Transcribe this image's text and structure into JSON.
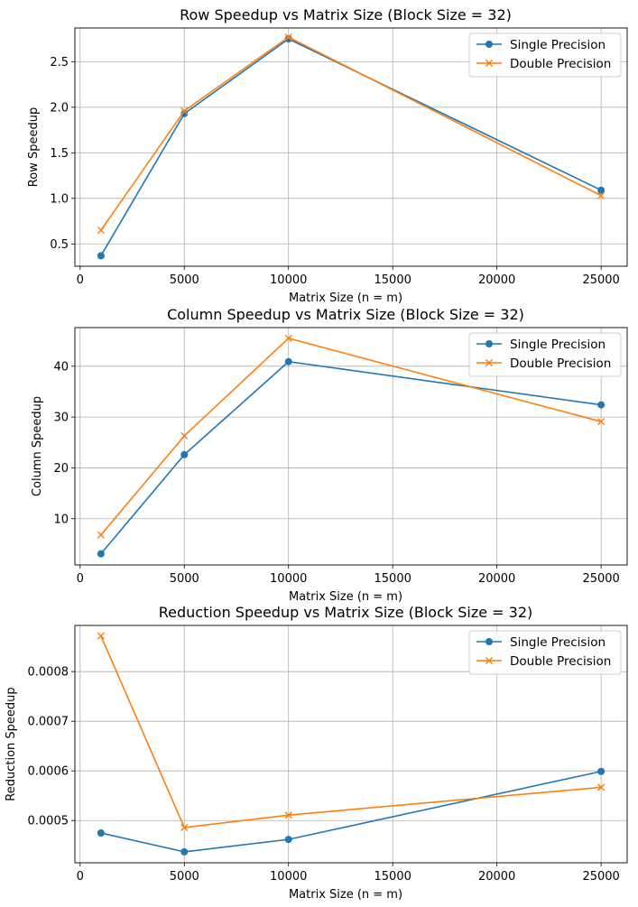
{
  "chart_data": [
    {
      "type": "line",
      "title": "Row Speedup vs Matrix Size (Block Size = 32)",
      "xlabel": "Matrix Size (n = m)",
      "ylabel": "Row Speedup",
      "xlim": [
        -250,
        26250
      ],
      "ylim": [
        0.255,
        2.87
      ],
      "xticks": [
        0,
        5000,
        10000,
        15000,
        20000,
        25000
      ],
      "yticks": [
        0.5,
        1.0,
        1.5,
        2.0,
        2.5
      ],
      "ytick_labels": [
        "0.5",
        "1.0",
        "1.5",
        "2.0",
        "2.5"
      ],
      "grid": true,
      "legend_position": "upper right",
      "x": [
        1000,
        5000,
        10000,
        25000
      ],
      "series": [
        {
          "name": "Single Precision",
          "color": "#1f77b4",
          "marker": "circle",
          "values": [
            0.37,
            1.93,
            2.75,
            1.09
          ]
        },
        {
          "name": "Double Precision",
          "color": "#ff7f0e",
          "marker": "x",
          "values": [
            0.65,
            1.96,
            2.77,
            1.03
          ]
        }
      ]
    },
    {
      "type": "line",
      "title": "Column Speedup vs Matrix Size (Block Size = 32)",
      "xlabel": "Matrix Size (n = m)",
      "ylabel": "Column Speedup",
      "xlim": [
        -250,
        26250
      ],
      "ylim": [
        0.9,
        47.6
      ],
      "xticks": [
        0,
        5000,
        10000,
        15000,
        20000,
        25000
      ],
      "yticks": [
        10,
        20,
        30,
        40
      ],
      "ytick_labels": [
        "10",
        "20",
        "30",
        "40"
      ],
      "grid": true,
      "legend_position": "upper right",
      "x": [
        1000,
        5000,
        10000,
        25000
      ],
      "series": [
        {
          "name": "Single Precision",
          "color": "#1f77b4",
          "marker": "circle",
          "values": [
            3.1,
            22.6,
            40.9,
            32.4
          ]
        },
        {
          "name": "Double Precision",
          "color": "#ff7f0e",
          "marker": "x",
          "values": [
            6.8,
            26.3,
            45.5,
            29.1
          ]
        }
      ]
    },
    {
      "type": "line",
      "title": "Reduction Speedup vs Matrix Size (Block Size = 32)",
      "xlabel": "Matrix Size (n = m)",
      "ylabel": "Reduction Speedup",
      "xlim": [
        -250,
        26250
      ],
      "ylim": [
        0.000415,
        0.000893
      ],
      "xticks": [
        0,
        5000,
        10000,
        15000,
        20000,
        25000
      ],
      "yticks": [
        0.0005,
        0.0006,
        0.0007,
        0.0008
      ],
      "ytick_labels": [
        "0.0005",
        "0.0006",
        "0.0007",
        "0.0008"
      ],
      "grid": true,
      "legend_position": "upper right",
      "x": [
        1000,
        5000,
        10000,
        25000
      ],
      "series": [
        {
          "name": "Single Precision",
          "color": "#1f77b4",
          "marker": "circle",
          "values": [
            0.000475,
            0.000437,
            0.000462,
            0.000599
          ]
        },
        {
          "name": "Double Precision",
          "color": "#ff7f0e",
          "marker": "x",
          "values": [
            0.000872,
            0.000486,
            0.000511,
            0.000567
          ]
        }
      ]
    }
  ]
}
